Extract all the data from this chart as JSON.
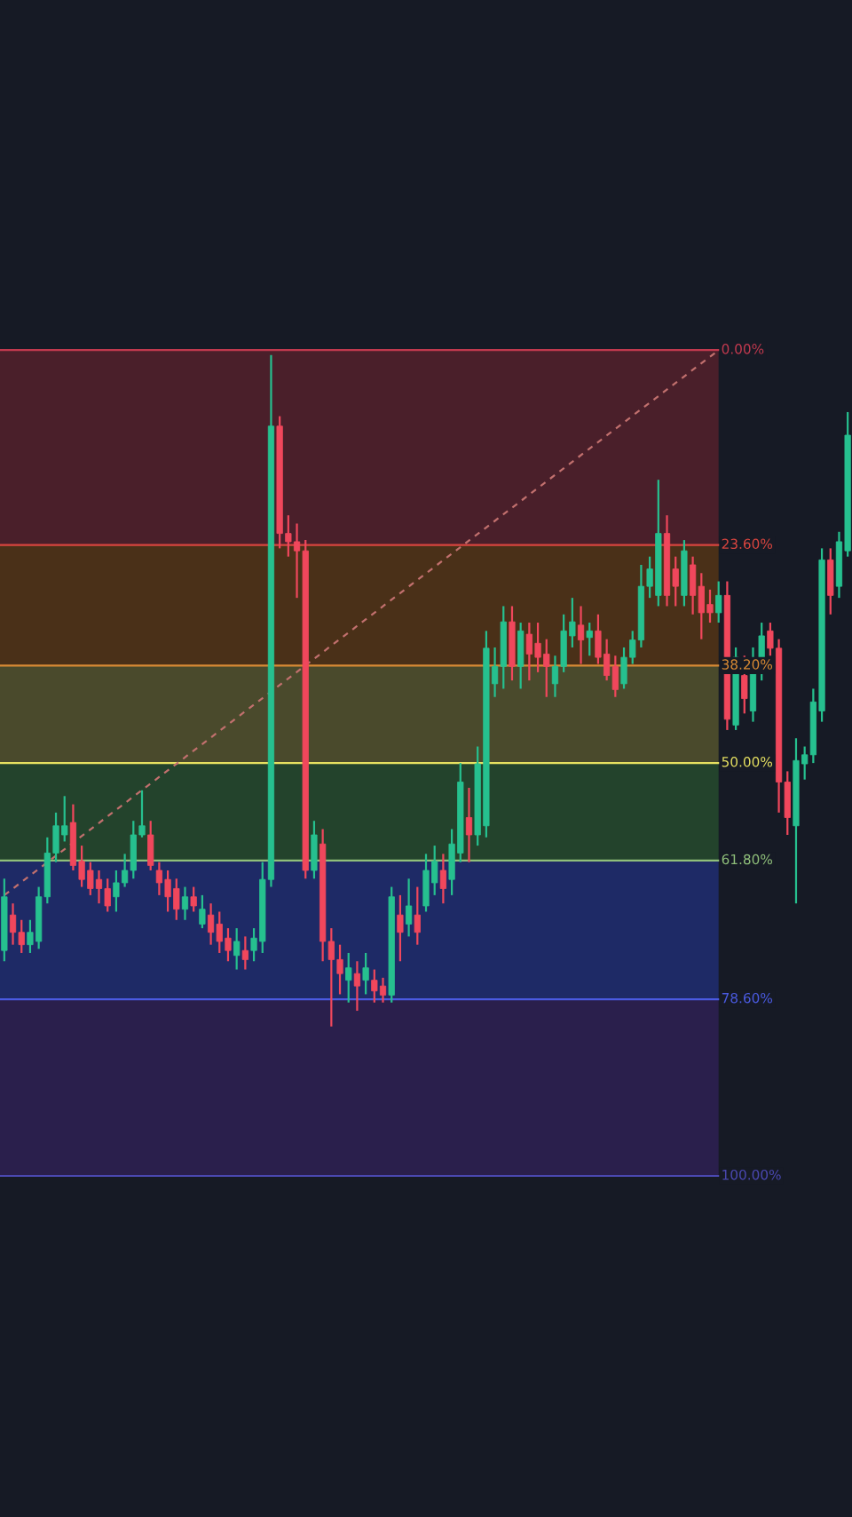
{
  "chart_data": {
    "type": "candlestick",
    "categories": [
      null,
      null,
      null,
      null,
      null,
      null,
      null,
      null,
      null,
      null,
      null,
      null,
      null,
      null,
      null,
      null,
      null,
      null,
      null,
      null,
      null,
      null,
      null,
      null,
      null,
      null,
      null,
      null,
      null,
      null,
      null,
      null,
      null,
      null,
      null,
      null,
      null,
      null,
      null,
      null,
      null,
      null,
      null,
      null,
      null,
      null,
      null,
      null,
      null,
      null,
      null,
      null,
      null,
      null,
      null,
      null,
      null,
      null,
      null,
      null,
      null,
      null,
      null,
      null,
      null,
      null,
      null,
      null,
      null,
      null,
      null,
      null,
      null,
      null,
      null,
      null,
      null,
      null,
      null,
      null,
      null,
      null,
      null,
      null,
      null,
      null,
      null,
      null,
      null,
      null,
      null,
      null,
      null,
      null,
      null,
      null,
      null,
      null,
      null
    ],
    "ohlc": [
      [
        72.7,
        74,
        64,
        66.2
      ],
      [
        68.4,
        72,
        67,
        70.5
      ],
      [
        70.5,
        73,
        69,
        72
      ],
      [
        72,
        73,
        69,
        70.5
      ],
      [
        71.6,
        72.5,
        65,
        66.2
      ],
      [
        66.2,
        67,
        59,
        60.9
      ],
      [
        60.9,
        62,
        56,
        57.6
      ],
      [
        58.7,
        59.5,
        54,
        57.6
      ],
      [
        57.2,
        63,
        55,
        62.4
      ],
      [
        61.9,
        65,
        60,
        64.1
      ],
      [
        63,
        66,
        62,
        65.2
      ],
      [
        64.1,
        67,
        63,
        65.2
      ],
      [
        65.2,
        68,
        64,
        67.3
      ],
      [
        66.2,
        68,
        63,
        64.5
      ],
      [
        64.5,
        65,
        61,
        63
      ],
      [
        63,
        64,
        57,
        58.7
      ],
      [
        58.7,
        59,
        53.3,
        57.6
      ],
      [
        58.7,
        63,
        57,
        62.4
      ],
      [
        63,
        66,
        62,
        64.5
      ],
      [
        64.1,
        68,
        63,
        66.2
      ],
      [
        65.2,
        69,
        64,
        67.7
      ],
      [
        67.7,
        69,
        65,
        66.2
      ],
      [
        66.2,
        68,
        65,
        67.3
      ],
      [
        69.5,
        70,
        66,
        67.7
      ],
      [
        68.4,
        72,
        67,
        70.5
      ],
      [
        69.5,
        73,
        68,
        71.6
      ],
      [
        71.2,
        74,
        70,
        72.7
      ],
      [
        73.3,
        75,
        70,
        71.6
      ],
      [
        72.7,
        75,
        71,
        73.8
      ],
      [
        72.7,
        74,
        70,
        71.2
      ],
      [
        71.6,
        73,
        62,
        64.1
      ],
      [
        64.1,
        65,
        0.6,
        9.2
      ],
      [
        9.2,
        24,
        8,
        22.2
      ],
      [
        22.2,
        25,
        20,
        23.2
      ],
      [
        23.2,
        30,
        21,
        24.3
      ],
      [
        24.3,
        64,
        23,
        63
      ],
      [
        63,
        64,
        57,
        58.7
      ],
      [
        59.8,
        74,
        58,
        71.6
      ],
      [
        71.6,
        81.9,
        70,
        73.8
      ],
      [
        73.8,
        78,
        72,
        75.5
      ],
      [
        76.3,
        79,
        73,
        74.8
      ],
      [
        75.5,
        80,
        74,
        77
      ],
      [
        76.3,
        78,
        73,
        74.8
      ],
      [
        76.3,
        79,
        75,
        77.6
      ],
      [
        77,
        79,
        76,
        78.1
      ],
      [
        78.1,
        79,
        65,
        66.2
      ],
      [
        68.4,
        74,
        66,
        70.5
      ],
      [
        69.5,
        71,
        64,
        67.3
      ],
      [
        68.4,
        72,
        65,
        70.5
      ],
      [
        67.3,
        68,
        61,
        63
      ],
      [
        64.5,
        66,
        60,
        61.9
      ],
      [
        63,
        67,
        61,
        65.2
      ],
      [
        64.1,
        66,
        58,
        59.8
      ],
      [
        60.9,
        62,
        50,
        52.3
      ],
      [
        56.6,
        62,
        53,
        58.7
      ],
      [
        58.7,
        60,
        48,
        50.1
      ],
      [
        57.6,
        59,
        34,
        36.1
      ],
      [
        40.4,
        42,
        36,
        38.3
      ],
      [
        38.3,
        41,
        31,
        32.9
      ],
      [
        32.9,
        40,
        31,
        38.3
      ],
      [
        38.3,
        41,
        33,
        34
      ],
      [
        34.4,
        40,
        33,
        36.8
      ],
      [
        35.5,
        39,
        33,
        37.2
      ],
      [
        36.8,
        42,
        35,
        38.3
      ],
      [
        40.4,
        42,
        37,
        38.3
      ],
      [
        38.3,
        39,
        32,
        34
      ],
      [
        34.6,
        36,
        30,
        32.9
      ],
      [
        33.3,
        38,
        31,
        35.1
      ],
      [
        34.8,
        37,
        33,
        34
      ],
      [
        34,
        38,
        32,
        37.2
      ],
      [
        36.8,
        40,
        35,
        39.4
      ],
      [
        38.3,
        42,
        37,
        41.1
      ],
      [
        40.4,
        41,
        36,
        37.2
      ],
      [
        37.2,
        38,
        34,
        35.1
      ],
      [
        35.1,
        36,
        26,
        28.6
      ],
      [
        28.6,
        30,
        25,
        26.5
      ],
      [
        29.7,
        31,
        15.7,
        22.2
      ],
      [
        22.2,
        31,
        20,
        29.7
      ],
      [
        26.5,
        31,
        25,
        28.6
      ],
      [
        29.7,
        31,
        23,
        24.3
      ],
      [
        26,
        32,
        25,
        29.7
      ],
      [
        28.6,
        35,
        27,
        31.8
      ],
      [
        30.8,
        33,
        29,
        31.8
      ],
      [
        31.8,
        33,
        28,
        29.7
      ],
      [
        29.7,
        46,
        28,
        44.7
      ],
      [
        45.4,
        46,
        36,
        37.2
      ],
      [
        39.4,
        44,
        37,
        42.2
      ],
      [
        43.7,
        45,
        36,
        38.3
      ],
      [
        38.3,
        40,
        33,
        34.6
      ],
      [
        34,
        37,
        33,
        36.1
      ],
      [
        36.1,
        56,
        35,
        52.3
      ],
      [
        52.3,
        58.7,
        51,
        56.6
      ],
      [
        57.6,
        67,
        47,
        49.7
      ],
      [
        50.1,
        52,
        48,
        49
      ],
      [
        49,
        50,
        41,
        42.6
      ],
      [
        43.7,
        45,
        24,
        25.4
      ],
      [
        25.4,
        32,
        24,
        29.7
      ],
      [
        28.6,
        30,
        22,
        23.2
      ],
      [
        24.3,
        25,
        7.5,
        10.3
      ]
    ],
    "colors": [
      "#26c08f",
      "#f0475c",
      "#f0475c",
      "#26c08f",
      "#26c08f",
      "#26c08f",
      "#26c08f",
      "#26c08f",
      "#f0475c",
      "#f0475c",
      "#f0475c",
      "#f0475c",
      "#f0475c",
      "#26c08f",
      "#26c08f",
      "#26c08f",
      "#26c08f",
      "#f0475c",
      "#f0475c",
      "#f0475c",
      "#f0475c",
      "#26c08f",
      "#f0475c",
      "#26c08f",
      "#f0475c",
      "#f0475c",
      "#f0475c",
      "#26c08f",
      "#f0475c",
      "#26c08f",
      "#26c08f",
      "#26c08f",
      "#f0475c",
      "#f0475c",
      "#f0475c",
      "#f0475c",
      "#26c08f",
      "#f0475c",
      "#f0475c",
      "#f0475c",
      "#26c08f",
      "#f0475c",
      "#26c08f",
      "#f0475c",
      "#f0475c",
      "#26c08f",
      "#f0475c",
      "#26c08f",
      "#f0475c",
      "#26c08f",
      "#26c08f",
      "#f0475c",
      "#26c08f",
      "#26c08f",
      "#f0475c",
      "#26c08f",
      "#26c08f",
      "#26c08f",
      "#26c08f",
      "#f0475c",
      "#26c08f",
      "#f0475c",
      "#f0475c",
      "#f0475c",
      "#26c08f",
      "#26c08f",
      "#26c08f",
      "#f0475c",
      "#26c08f",
      "#f0475c",
      "#f0475c",
      "#f0475c",
      "#26c08f",
      "#26c08f",
      "#26c08f",
      "#26c08f",
      "#26c08f",
      "#f0475c",
      "#f0475c",
      "#26c08f",
      "#f0475c",
      "#f0475c",
      "#f0475c",
      "#26c08f",
      "#f0475c",
      "#26c08f",
      "#f0475c",
      "#26c08f",
      "#26c08f",
      "#f0475c",
      "#f0475c",
      "#f0475c",
      "#26c08f",
      "#26c08f",
      "#26c08f",
      "#26c08f",
      "#f0475c",
      "#26c08f",
      "#26c08f"
    ],
    "series": [
      {
        "type": "line",
        "color": "#c2706e",
        "line_style": "dashed",
        "values": [
          66,
          null,
          null,
          null,
          null,
          null,
          null,
          null,
          null,
          null,
          null,
          null,
          null,
          null,
          null,
          null,
          null,
          null,
          null,
          null,
          null,
          null,
          null,
          null,
          null,
          null,
          null,
          null,
          null,
          null,
          null,
          null,
          null,
          null,
          null,
          null,
          null,
          null,
          null,
          null,
          null,
          null,
          null,
          null,
          null,
          null,
          null,
          null,
          null,
          null,
          null,
          null,
          null,
          null,
          null,
          null,
          null,
          null,
          null,
          null,
          null,
          null,
          null,
          null,
          null,
          null,
          null,
          null,
          null,
          null,
          null,
          null,
          null,
          null,
          null,
          null,
          null,
          null,
          null,
          null,
          null,
          null,
          null,
          0,
          null,
          null,
          null,
          null,
          null,
          null,
          null,
          null,
          null,
          null,
          null,
          null,
          null,
          null,
          null
        ]
      }
    ],
    "ylim": [
      141.3,
      -42.4
    ],
    "bands": [
      {
        "axis": "y",
        "from": 0,
        "to": 23.6,
        "color": "#4a1f2a"
      },
      {
        "axis": "y",
        "from": 23.6,
        "to": 38.2,
        "color": "#4a3018"
      },
      {
        "axis": "y",
        "from": 38.2,
        "to": 50,
        "color": "#4a4a2c"
      },
      {
        "axis": "y",
        "from": 50,
        "to": 61.8,
        "color": "#23432c"
      },
      {
        "axis": "y",
        "from": 61.8,
        "to": 78.6,
        "color": "#1e2a66"
      },
      {
        "axis": "y",
        "from": 78.6,
        "to": 100,
        "color": "#2a1f4c"
      }
    ],
    "ref_lines": [
      {
        "axis": "y",
        "value": 0,
        "label": "0.00%",
        "color": "#c0394e"
      },
      {
        "axis": "y",
        "value": 23.6,
        "label": "23.60%",
        "color": "#d9453f"
      },
      {
        "axis": "y",
        "value": 38.2,
        "label": "38.20%",
        "color": "#d98a34"
      },
      {
        "axis": "y",
        "value": 50,
        "label": "50.00%",
        "color": "#e6e060"
      },
      {
        "axis": "y",
        "value": 61.8,
        "label": "61.80%",
        "color": "#8fbf7a"
      },
      {
        "axis": "y",
        "value": 78.6,
        "label": "78.60%",
        "color": "#4a5ae0"
      },
      {
        "axis": "y",
        "value": 100,
        "label": "100.00%",
        "color": "#4a48b0"
      }
    ]
  }
}
